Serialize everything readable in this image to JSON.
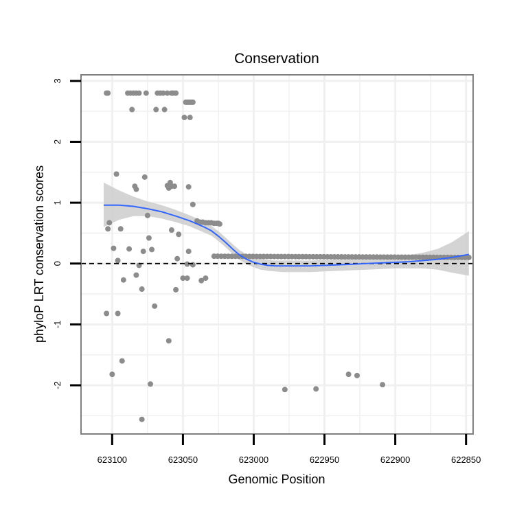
{
  "chart_data": {
    "type": "scatter",
    "title": "Conservation",
    "xlabel": "Genomic Position",
    "ylabel": "phyloP LRT conservation scores",
    "x_reversed": true,
    "xlim": [
      623122,
      622845
    ],
    "ylim": [
      -2.8,
      3.1
    ],
    "x_ticks": [
      623100,
      623050,
      623000,
      622950,
      622900,
      622850
    ],
    "x_tick_labels": [
      "623100",
      "623050",
      "623000",
      "622950",
      "622900",
      "622850"
    ],
    "y_ticks": [
      -2,
      -1,
      0,
      1,
      2,
      3
    ],
    "y_tick_labels": [
      "-2",
      "-1",
      "0",
      "1",
      "2",
      "3"
    ],
    "reference_line": {
      "y": 0,
      "style": "dashed"
    },
    "grid": true,
    "point_color": "#8c8c8c",
    "smooth_color": "#3366ff",
    "ribbon_color": "#cccccc",
    "points": [
      {
        "x": 623104,
        "y": 2.8
      },
      {
        "x": 623103,
        "y": 2.8
      },
      {
        "x": 623089,
        "y": 2.8
      },
      {
        "x": 623087,
        "y": 2.8
      },
      {
        "x": 623085,
        "y": 2.8
      },
      {
        "x": 623083,
        "y": 2.8
      },
      {
        "x": 623081,
        "y": 2.8
      },
      {
        "x": 623076,
        "y": 2.8
      },
      {
        "x": 623068,
        "y": 2.8
      },
      {
        "x": 623066,
        "y": 2.8
      },
      {
        "x": 623064,
        "y": 2.8
      },
      {
        "x": 623061,
        "y": 2.8
      },
      {
        "x": 623058,
        "y": 2.8
      },
      {
        "x": 623057,
        "y": 2.8
      },
      {
        "x": 623055,
        "y": 2.8
      },
      {
        "x": 623048,
        "y": 2.65
      },
      {
        "x": 623047,
        "y": 2.65
      },
      {
        "x": 623046,
        "y": 2.65
      },
      {
        "x": 623045,
        "y": 2.65
      },
      {
        "x": 623044,
        "y": 2.65
      },
      {
        "x": 623043,
        "y": 2.65
      },
      {
        "x": 623086,
        "y": 2.53
      },
      {
        "x": 623069,
        "y": 2.53
      },
      {
        "x": 623063,
        "y": 2.53
      },
      {
        "x": 623049,
        "y": 2.4
      },
      {
        "x": 623045,
        "y": 2.4
      },
      {
        "x": 623102,
        "y": 0.67
      },
      {
        "x": 623103,
        "y": 0.57
      },
      {
        "x": 623097,
        "y": 1.47
      },
      {
        "x": 623084,
        "y": 1.27
      },
      {
        "x": 623083,
        "y": 1.22
      },
      {
        "x": 623077,
        "y": 1.42
      },
      {
        "x": 623061,
        "y": 1.28
      },
      {
        "x": 623060,
        "y": 1.24
      },
      {
        "x": 623059,
        "y": 1.33
      },
      {
        "x": 623056,
        "y": 1.27
      },
      {
        "x": 623058,
        "y": 1.27
      },
      {
        "x": 623046,
        "y": 1.26
      },
      {
        "x": 623043,
        "y": 0.97
      },
      {
        "x": 623075,
        "y": 0.79
      },
      {
        "x": 623058,
        "y": 0.55
      },
      {
        "x": 623053,
        "y": 0.48
      },
      {
        "x": 623074,
        "y": 0.42
      },
      {
        "x": 623094,
        "y": 0.57
      },
      {
        "x": 623088,
        "y": 0.24
      },
      {
        "x": 623099,
        "y": 0.25
      },
      {
        "x": 623072,
        "y": 0.23
      },
      {
        "x": 623078,
        "y": 0.2
      },
      {
        "x": 623046,
        "y": 0.2
      },
      {
        "x": 623096,
        "y": 0.05
      },
      {
        "x": 623054,
        "y": 0.08
      },
      {
        "x": 623081,
        "y": -0.03
      },
      {
        "x": 623047,
        "y": -0.01
      },
      {
        "x": 623043,
        "y": -0.02
      },
      {
        "x": 623092,
        "y": -0.27
      },
      {
        "x": 623083,
        "y": -0.19
      },
      {
        "x": 623079,
        "y": -0.42
      },
      {
        "x": 623050,
        "y": -0.24
      },
      {
        "x": 623047,
        "y": -0.24
      },
      {
        "x": 623037,
        "y": -0.28
      },
      {
        "x": 623034,
        "y": -0.24
      },
      {
        "x": 623055,
        "y": -0.43
      },
      {
        "x": 623070,
        "y": -0.7
      },
      {
        "x": 623104,
        "y": -0.82
      },
      {
        "x": 623096,
        "y": -0.82
      },
      {
        "x": 623060,
        "y": -1.27
      },
      {
        "x": 623093,
        "y": -1.6
      },
      {
        "x": 623100,
        "y": -1.82
      },
      {
        "x": 623073,
        "y": -1.98
      },
      {
        "x": 623079,
        "y": -2.56
      },
      {
        "x": 623040,
        "y": 0.7
      },
      {
        "x": 623038,
        "y": 0.68
      },
      {
        "x": 623036,
        "y": 0.68
      },
      {
        "x": 623034,
        "y": 0.67
      },
      {
        "x": 623032,
        "y": 0.67
      },
      {
        "x": 623030,
        "y": 0.67
      },
      {
        "x": 623028,
        "y": 0.66
      },
      {
        "x": 623026,
        "y": 0.66
      },
      {
        "x": 623025,
        "y": 0.66
      },
      {
        "x": 623024,
        "y": 0.65
      },
      {
        "x": 622978,
        "y": -2.07
      },
      {
        "x": 622956,
        "y": -2.06
      },
      {
        "x": 622933,
        "y": -1.82
      },
      {
        "x": 622927,
        "y": -1.84
      },
      {
        "x": 622909,
        "y": -1.99
      }
    ],
    "band_points": {
      "x_from": 623028,
      "x_to": 622847,
      "step": 2.5,
      "y_start": 0.12,
      "y_end": 0.1
    },
    "smooth_line": {
      "x": [
        623106,
        623095,
        623085,
        623075,
        623065,
        623055,
        623045,
        623035,
        623030,
        623025,
        623020,
        623015,
        623010,
        623005,
        623000,
        622995,
        622990,
        622985,
        622980,
        622970,
        622960,
        622950,
        622940,
        622930,
        622920,
        622910,
        622900,
        622890,
        622880,
        622870,
        622860,
        622848
      ],
      "y": [
        0.96,
        0.96,
        0.94,
        0.9,
        0.85,
        0.78,
        0.7,
        0.6,
        0.54,
        0.45,
        0.35,
        0.24,
        0.14,
        0.07,
        0.02,
        -0.01,
        -0.03,
        -0.04,
        -0.04,
        -0.04,
        -0.04,
        -0.03,
        -0.02,
        -0.01,
        0.0,
        0.01,
        0.02,
        0.03,
        0.05,
        0.07,
        0.1,
        0.15
      ]
    },
    "confidence_band": {
      "upper": [
        1.33,
        1.2,
        1.1,
        1.02,
        0.96,
        0.88,
        0.79,
        0.69,
        0.62,
        0.53,
        0.43,
        0.32,
        0.22,
        0.15,
        0.1,
        0.08,
        0.06,
        0.05,
        0.05,
        0.05,
        0.05,
        0.06,
        0.07,
        0.08,
        0.09,
        0.1,
        0.12,
        0.14,
        0.18,
        0.24,
        0.35,
        0.53
      ],
      "lower": [
        0.6,
        0.72,
        0.78,
        0.78,
        0.74,
        0.68,
        0.61,
        0.51,
        0.46,
        0.37,
        0.27,
        0.16,
        0.06,
        -0.01,
        -0.06,
        -0.1,
        -0.12,
        -0.13,
        -0.14,
        -0.14,
        -0.14,
        -0.13,
        -0.12,
        -0.11,
        -0.1,
        -0.09,
        -0.08,
        -0.08,
        -0.08,
        -0.1,
        -0.15,
        -0.2
      ]
    }
  }
}
